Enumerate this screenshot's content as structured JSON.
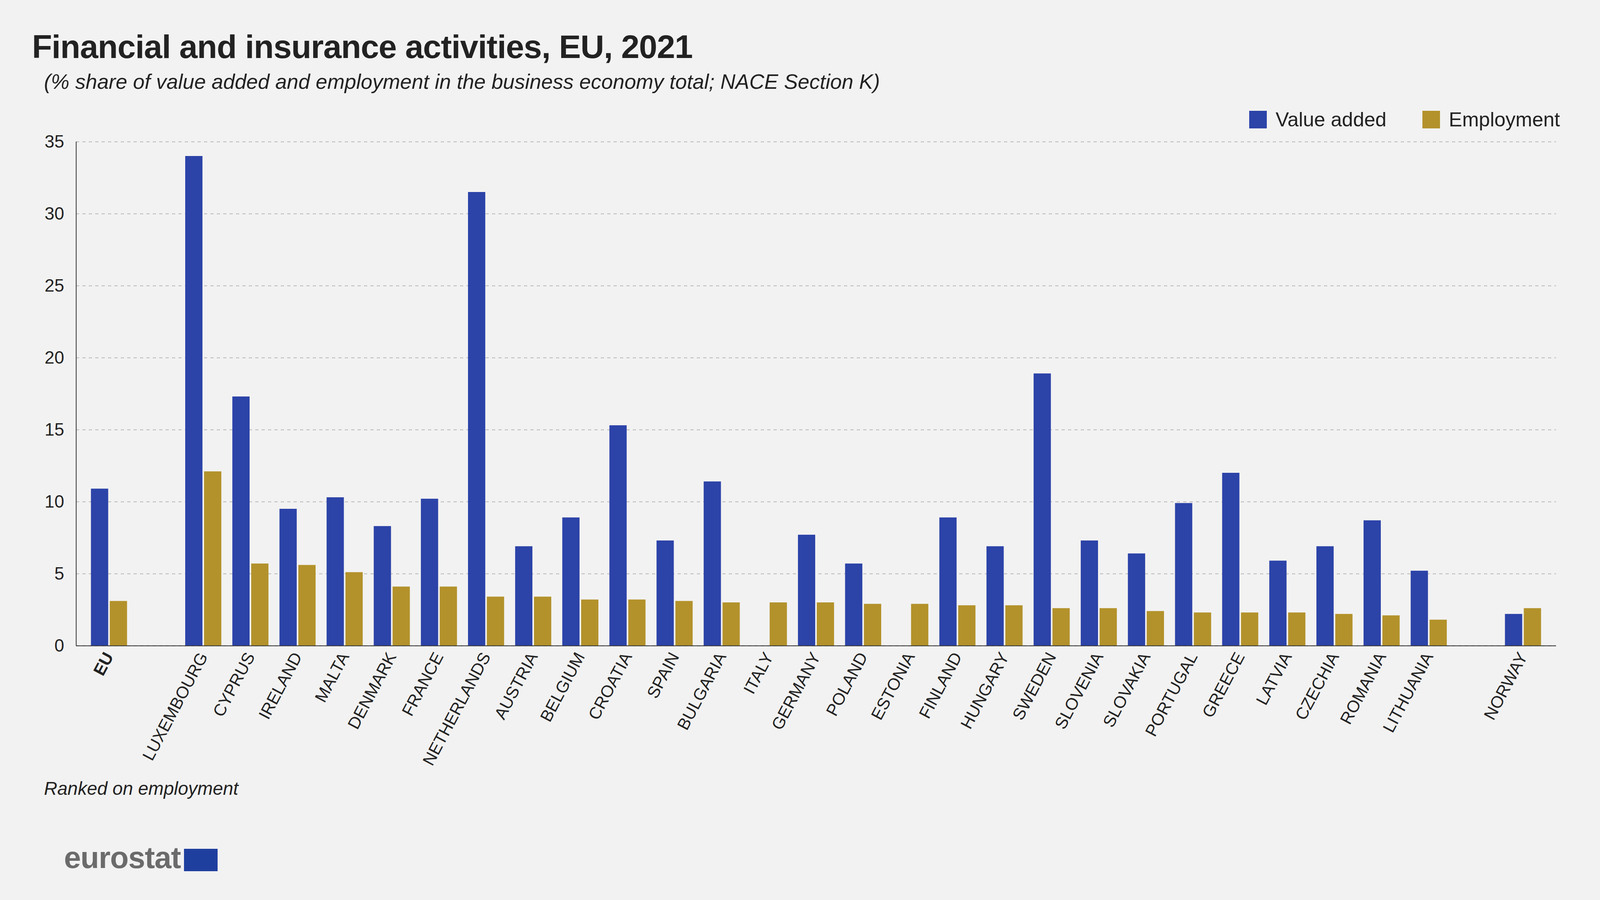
{
  "chart_data": {
    "type": "bar",
    "title": "Financial and insurance activities, EU, 2021",
    "subtitle": "(% share of value added and employment in the business economy total; NACE Section K)",
    "categories": [
      "EU",
      null,
      "LUXEMBOURG",
      "CYPRUS",
      "IRELAND",
      "MALTA",
      "DENMARK",
      "FRANCE",
      "NETHERLANDS",
      "AUSTRIA",
      "BELGIUM",
      "CROATIA",
      "SPAIN",
      "BULGARIA",
      "ITALY",
      "GERMANY",
      "POLAND",
      "ESTONIA",
      "FINLAND",
      "HUNGARY",
      "SWEDEN",
      "SLOVENIA",
      "SLOVAKIA",
      "PORTUGAL",
      "GREECE",
      "LATVIA",
      "CZECHIA",
      "ROMANIA",
      "LITHUANIA",
      null,
      "NORWAY"
    ],
    "series": [
      {
        "name": "Value added",
        "color": "#2c43a8",
        "values": [
          10.9,
          null,
          34.0,
          17.3,
          9.5,
          10.3,
          8.3,
          10.2,
          31.5,
          6.9,
          8.9,
          15.3,
          7.3,
          11.4,
          null,
          7.7,
          5.7,
          null,
          8.9,
          6.9,
          18.9,
          7.3,
          6.4,
          9.9,
          12.0,
          5.9,
          6.9,
          8.7,
          5.2,
          null,
          2.2
        ]
      },
      {
        "name": "Employment",
        "color": "#b3922b",
        "values": [
          3.1,
          null,
          12.1,
          5.7,
          5.6,
          5.1,
          4.1,
          4.1,
          3.4,
          3.4,
          3.2,
          3.2,
          3.1,
          3.0,
          3.0,
          3.0,
          2.9,
          2.9,
          2.8,
          2.8,
          2.6,
          2.6,
          2.4,
          2.3,
          2.3,
          2.3,
          2.2,
          2.1,
          1.8,
          null,
          2.6
        ]
      }
    ],
    "ylim": [
      0,
      35
    ],
    "yticks": [
      0,
      5,
      10,
      15,
      20,
      25,
      30,
      35
    ],
    "grid": true,
    "legend": "top-right",
    "note": "Ranked on employment",
    "source": "eurostat"
  }
}
